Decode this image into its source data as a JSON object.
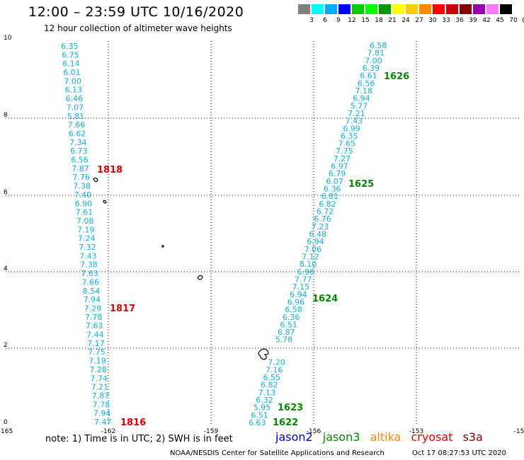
{
  "title": "12:00 – 23:59 UTC 10/16/2020",
  "subtitle": "12 hour collection of altimeter wave heights",
  "legend": {
    "colors": [
      "#808080",
      "#00ffff",
      "#00aaff",
      "#0000ff",
      "#00cc00",
      "#00ff00",
      "#009900",
      "#ffff00",
      "#ffcc00",
      "#ff8800",
      "#ff0000",
      "#cc0000",
      "#880000",
      "#9900aa",
      "#ff77ff",
      "#000000"
    ],
    "ticks": [
      "3",
      "6",
      "9",
      "12",
      "15",
      "18",
      "21",
      "24",
      "27",
      "30",
      "33",
      "36",
      "39",
      "42",
      "45",
      "70",
      "(ft)"
    ]
  },
  "map": {
    "x_ticks": [
      "-165",
      "-162",
      "-159",
      "-156",
      "-153",
      "-15"
    ],
    "y_ticks": [
      "0",
      "2",
      "4",
      "6",
      "8",
      "10"
    ]
  },
  "tracks": [
    {
      "id": "left-track",
      "values": [
        "6.35",
        "6.75",
        "6.14",
        "6.01",
        "7.00",
        "6.13",
        "6.46",
        "7.07",
        "5.81",
        "7.66",
        "6.62",
        "7.34",
        "6.73",
        "6.56",
        "7.87",
        "7.76",
        "7.38",
        "7.40",
        "6.90",
        "7.61",
        "7.08",
        "7.19",
        "7.24",
        "7.32",
        "7.43",
        "7.38",
        "7.63",
        "7.66",
        "8.54",
        "7.94",
        "7.29",
        "7.78",
        "7.63",
        "7.44",
        "7.17",
        "7.75",
        "7.19",
        "7.28",
        "7.74",
        "7.21",
        "7.87",
        "7.78",
        "7.94",
        "7.47"
      ]
    },
    {
      "id": "right-track",
      "values": [
        "6.58",
        "7.81",
        "7.00",
        "6.39",
        "6.61",
        "6.56",
        "7.18",
        "6.94",
        "5.77",
        "7.21",
        "7.43",
        "6.99",
        "6.35",
        "7.65",
        "7.75",
        "7.27",
        "6.97",
        "6.79",
        "6.07",
        "6.36",
        "6.81",
        "6.82",
        "6.72",
        "6.76",
        "7.23",
        "6.48",
        "6.94",
        "7.06",
        "7.12",
        "8.10",
        "6.96",
        "7.77",
        "7.15",
        "6.94",
        "6.96",
        "6.58",
        "6.36",
        "6.51",
        "6.87",
        "5.78",
        "",
        "",
        "7.20",
        "7.16",
        "6.55",
        "6.82",
        "7.13",
        "6.32",
        "5.95",
        "6.51",
        "6.63"
      ]
    }
  ],
  "pass_labels": [
    {
      "text": "1626",
      "sat": "jason3"
    },
    {
      "text": "1625",
      "sat": "jason3"
    },
    {
      "text": "1624",
      "sat": "jason3"
    },
    {
      "text": "1623",
      "sat": "jason3"
    },
    {
      "text": "1622",
      "sat": "jason3"
    },
    {
      "text": "1818",
      "sat": "cryosat"
    },
    {
      "text": "1817",
      "sat": "cryosat"
    },
    {
      "text": "1816",
      "sat": "cryosat"
    }
  ],
  "satellite_colors": {
    "jason2": "#0000cc",
    "jason3": "#008800",
    "altika": "#ff8800",
    "cryosat": "#dd0000",
    "s3a": "#880000"
  },
  "note": "note:  1) Time is in UTC;  2) SWH is in feet",
  "satellites": {
    "jason2": "jason2",
    "jason3": "jason3",
    "altika": "altika",
    "cryosat": "cryosat",
    "s3a": "s3a"
  },
  "credit": "NOAA/NESDIS Center for Satellite Applications and Research",
  "timestamp": "Oct 17 08:27:53 UTC 2020"
}
